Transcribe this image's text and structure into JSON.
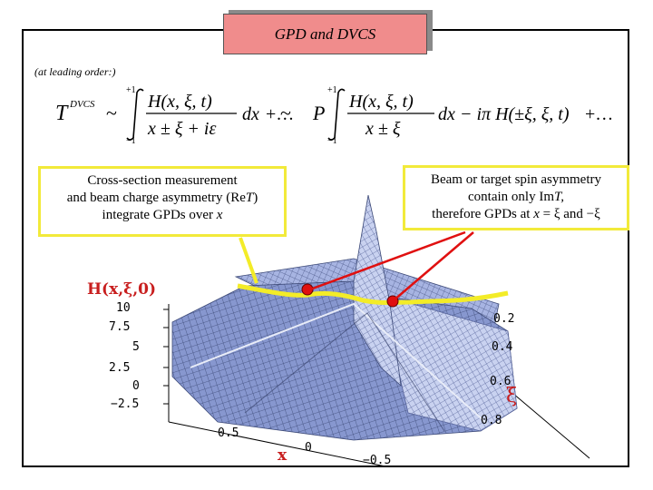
{
  "slide": {
    "title": "GPD and DVCS",
    "note": "(at leading order:)"
  },
  "formula": {
    "lhs": "T",
    "lhs_sup": "DVCS",
    "tilde1": "~",
    "tilde2": "~",
    "int_upper": "+1",
    "int_lower": "−1",
    "num1": "H(x, ξ, t)",
    "den1": "x ± ξ + iε",
    "dx1": "dx",
    "plus1": "+…",
    "pv": "P",
    "num2": "H(x, ξ, t)",
    "den2": "x ± ξ",
    "dx2": "dx",
    "imag_term": "− iπ H(±ξ, ξ, t)",
    "plus2": "+…"
  },
  "callouts": {
    "left": {
      "line1": "Cross-section measurement",
      "line2": "and beam charge asymmetry (Re",
      "line2_t": "T",
      "line2_end": ")",
      "line3": "integrate GPDs over ",
      "line3_x": "x"
    },
    "right": {
      "line1": "Beam or target spin asymmetry",
      "line2": "contain only Im",
      "line2_t": "T,",
      "line3": "therefore GPDs at ",
      "line3_x": "x",
      "line3_end": " = ξ and −ξ"
    }
  },
  "plot": {
    "z_title": "H(x,ξ,0)",
    "z_ticks": [
      "10",
      "7.5",
      "5",
      "2.5",
      "0",
      "−2.5"
    ],
    "x_title": "x",
    "x_ticks": [
      "0.5",
      "0",
      "−0.5"
    ],
    "xi_title": "ξ",
    "xi_ticks": [
      "0.2",
      "0.4",
      "0.6",
      "0.8"
    ],
    "colors": {
      "surface": "#7f90c8",
      "ridge": "#f3ec28",
      "marker": "#e01010",
      "arrow": "#e01010"
    }
  }
}
